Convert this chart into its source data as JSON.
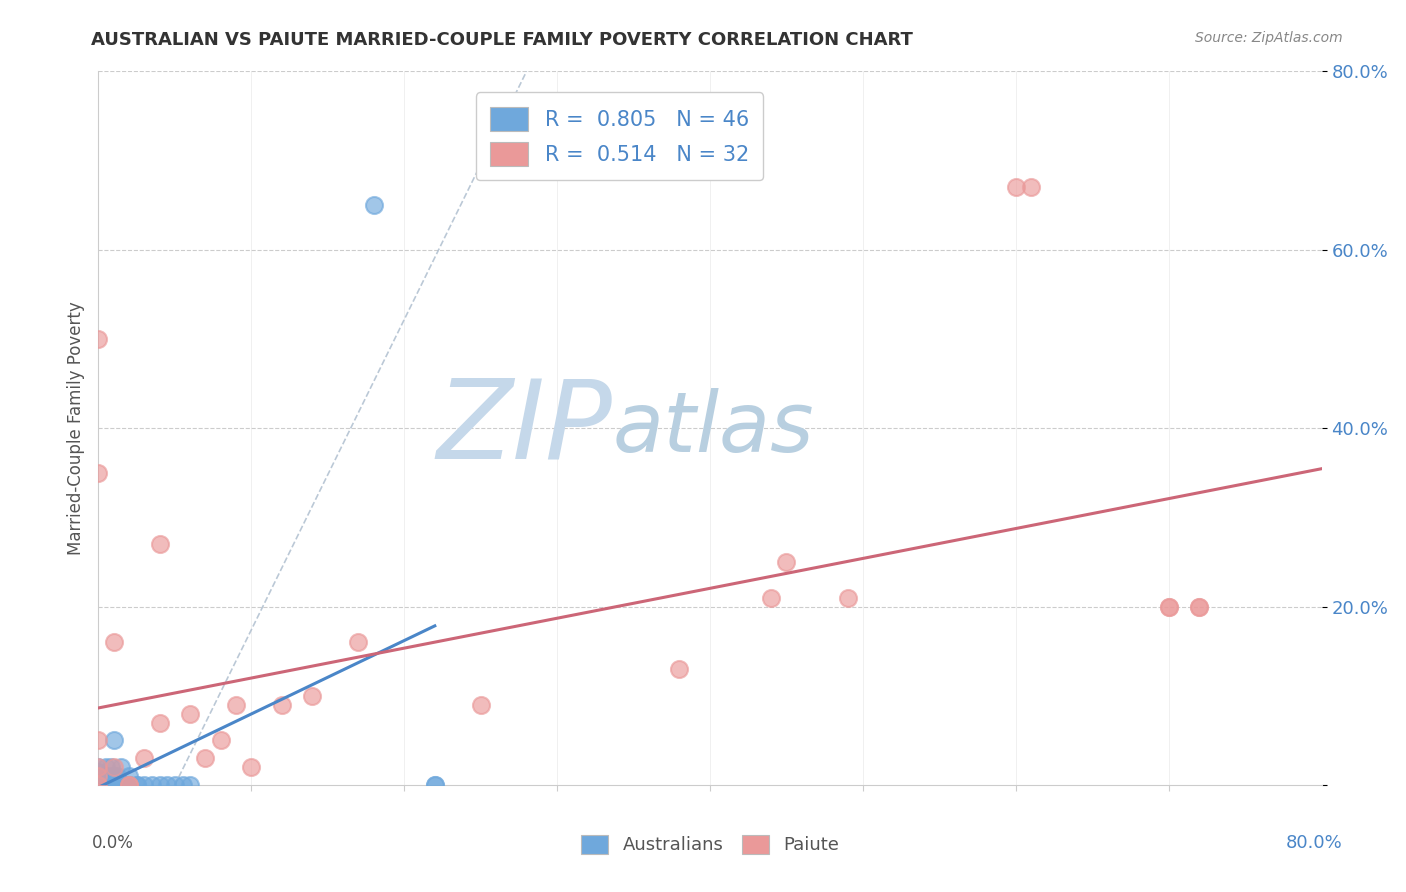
{
  "title": "AUSTRALIAN VS PAIUTE MARRIED-COUPLE FAMILY POVERTY CORRELATION CHART",
  "source_text": "Source: ZipAtlas.com",
  "ylabel": "Married-Couple Family Poverty",
  "xlim": [
    0,
    0.8
  ],
  "ylim": [
    0,
    0.8
  ],
  "ytick_vals": [
    0.0,
    0.2,
    0.4,
    0.6,
    0.8
  ],
  "ytick_labels": [
    "",
    "20.0%",
    "40.0%",
    "60.0%",
    "80.0%"
  ],
  "blue_color": "#6fa8dc",
  "blue_line_color": "#4a86c8",
  "pink_color": "#ea9999",
  "pink_line_color": "#cc6677",
  "dash_color": "#aabbcc",
  "blue_scatter_x": [
    0.0,
    0.0,
    0.0,
    0.0,
    0.0,
    0.0,
    0.0,
    0.0,
    0.0,
    0.0,
    0.0,
    0.0,
    0.0,
    0.0,
    0.005,
    0.005,
    0.005,
    0.005,
    0.005,
    0.008,
    0.008,
    0.008,
    0.008,
    0.01,
    0.01,
    0.01,
    0.01,
    0.012,
    0.012,
    0.015,
    0.015,
    0.02,
    0.02,
    0.02,
    0.025,
    0.025,
    0.03,
    0.035,
    0.04,
    0.045,
    0.05,
    0.055,
    0.06,
    0.18,
    0.22,
    0.22
  ],
  "blue_scatter_y": [
    0.0,
    0.0,
    0.0,
    0.0,
    0.0,
    0.0,
    0.0,
    0.0,
    0.0,
    0.0,
    0.005,
    0.01,
    0.015,
    0.02,
    0.0,
    0.0,
    0.0,
    0.01,
    0.02,
    0.0,
    0.0,
    0.01,
    0.02,
    0.0,
    0.0,
    0.01,
    0.05,
    0.0,
    0.01,
    0.0,
    0.02,
    0.0,
    0.0,
    0.01,
    0.0,
    0.0,
    0.0,
    0.0,
    0.0,
    0.0,
    0.0,
    0.0,
    0.0,
    0.65,
    0.0,
    0.0
  ],
  "pink_scatter_x": [
    0.0,
    0.0,
    0.0,
    0.0,
    0.0,
    0.0,
    0.01,
    0.01,
    0.02,
    0.02,
    0.03,
    0.04,
    0.04,
    0.06,
    0.07,
    0.08,
    0.09,
    0.1,
    0.12,
    0.14,
    0.17,
    0.25,
    0.38,
    0.44,
    0.45,
    0.49,
    0.6,
    0.61,
    0.7,
    0.72,
    0.7,
    0.72
  ],
  "pink_scatter_y": [
    0.0,
    0.01,
    0.02,
    0.05,
    0.35,
    0.5,
    0.02,
    0.16,
    0.0,
    0.0,
    0.03,
    0.07,
    0.27,
    0.08,
    0.03,
    0.05,
    0.09,
    0.02,
    0.09,
    0.1,
    0.16,
    0.09,
    0.13,
    0.21,
    0.25,
    0.21,
    0.67,
    0.67,
    0.2,
    0.2,
    0.2,
    0.2
  ],
  "blue_R": 0.805,
  "blue_N": 46,
  "pink_R": 0.514,
  "pink_N": 32,
  "watermark_ZIP": "ZIP",
  "watermark_atlas": "atlas",
  "watermark_color_ZIP": "#c5d8ea",
  "watermark_color_atlas": "#b8cfe0",
  "background_color": "#ffffff",
  "grid_color": "#cccccc"
}
